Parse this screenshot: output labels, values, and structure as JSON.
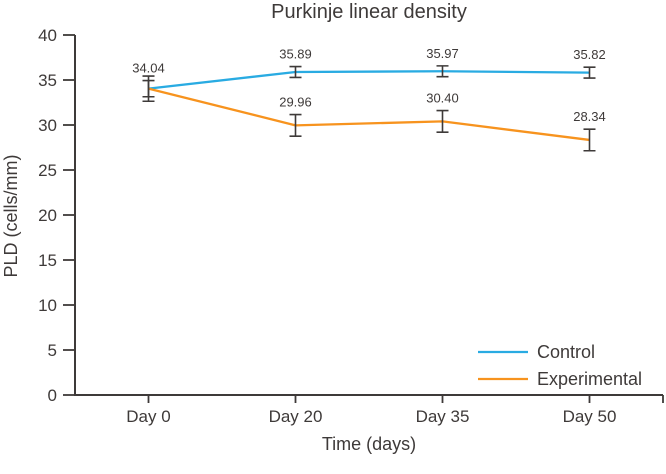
{
  "figure": {
    "background_color": "#ffffff",
    "text_color": "#3E3A39",
    "axis_color": "#3E3A39"
  },
  "chart_data": {
    "type": "line",
    "title": "Purkinje linear density",
    "xlabel": "Time (days)",
    "ylabel": "PLD (cells/mm)",
    "categories": [
      "Day 0",
      "Day 20",
      "Day 35",
      "Day 50"
    ],
    "ylim": [
      0,
      40
    ],
    "yticks": [
      "0",
      "5",
      "10",
      "15",
      "20",
      "25",
      "30",
      "35",
      "40"
    ],
    "grid": false,
    "error_bars": true,
    "legend_position": "lower right",
    "series": [
      {
        "name": "Control",
        "color": "#29ABE2",
        "values": [
          34.04,
          35.89,
          35.97,
          35.82
        ],
        "errors": [
          0.9,
          0.6,
          0.6,
          0.6
        ],
        "point_labels": [
          "34.04",
          "35.89",
          "35.97",
          "35.82"
        ]
      },
      {
        "name": "Experimental",
        "color": "#F7931E",
        "values": [
          34.04,
          29.96,
          30.4,
          28.34
        ],
        "errors": [
          1.4,
          1.2,
          1.2,
          1.2
        ],
        "point_labels": [
          "",
          "29.96",
          "30.40",
          "28.34"
        ]
      }
    ]
  }
}
